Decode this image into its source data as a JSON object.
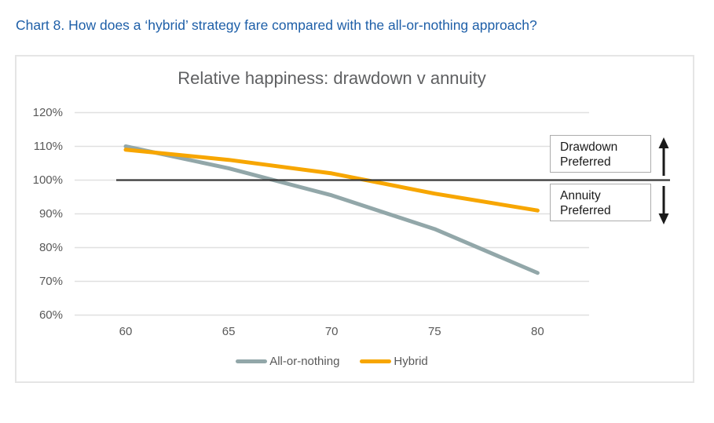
{
  "page": {
    "heading": "Chart 8. How does a ‘hybrid’ strategy fare compared with the all-or-nothing approach?"
  },
  "chart": {
    "title": "Relative happiness: drawdown v annuity",
    "annotations": {
      "drawdown": {
        "line1": "Drawdown",
        "line2": "Preferred",
        "arrow_icon": "up-arrow"
      },
      "annuity": {
        "line1": "Annuity",
        "line2": "Preferred",
        "arrow_icon": "down-arrow"
      }
    },
    "legend": {
      "items": [
        {
          "label": "All-or-nothing",
          "color": "#92A7A9"
        },
        {
          "label": "Hybrid",
          "color": "#F7A600"
        }
      ]
    },
    "colors": {
      "heading_blue": "#1E5FA8",
      "title_gray": "#5F6062",
      "axis_gray": "#595959",
      "gridline": "#E0E0E0",
      "reference_line": "#383838",
      "container_border": "#E5E5E5"
    }
  },
  "chart_data": {
    "type": "line",
    "title": "Relative happiness: drawdown v annuity",
    "x": [
      60,
      65,
      70,
      75,
      80
    ],
    "x_tick_labels": [
      "60",
      "65",
      "70",
      "75",
      "80"
    ],
    "y_tick_values": [
      120,
      110,
      100,
      90,
      80,
      70,
      60
    ],
    "y_tick_labels": [
      "120%",
      "110%",
      "100%",
      "90%",
      "80%",
      "70%",
      "60%"
    ],
    "ylim": [
      60,
      120
    ],
    "xlabel": "",
    "ylabel": "",
    "grid": "horizontal",
    "legend_position": "bottom",
    "series": [
      {
        "name": "All-or-nothing",
        "color": "#92A7A9",
        "values": [
          110,
          103.5,
          95.5,
          85.5,
          72.5
        ]
      },
      {
        "name": "Hybrid",
        "color": "#F7A600",
        "values": [
          109,
          106,
          102,
          96,
          91
        ]
      }
    ],
    "reference_line": {
      "value": 100,
      "color": "#383838",
      "label": "100%"
    }
  }
}
